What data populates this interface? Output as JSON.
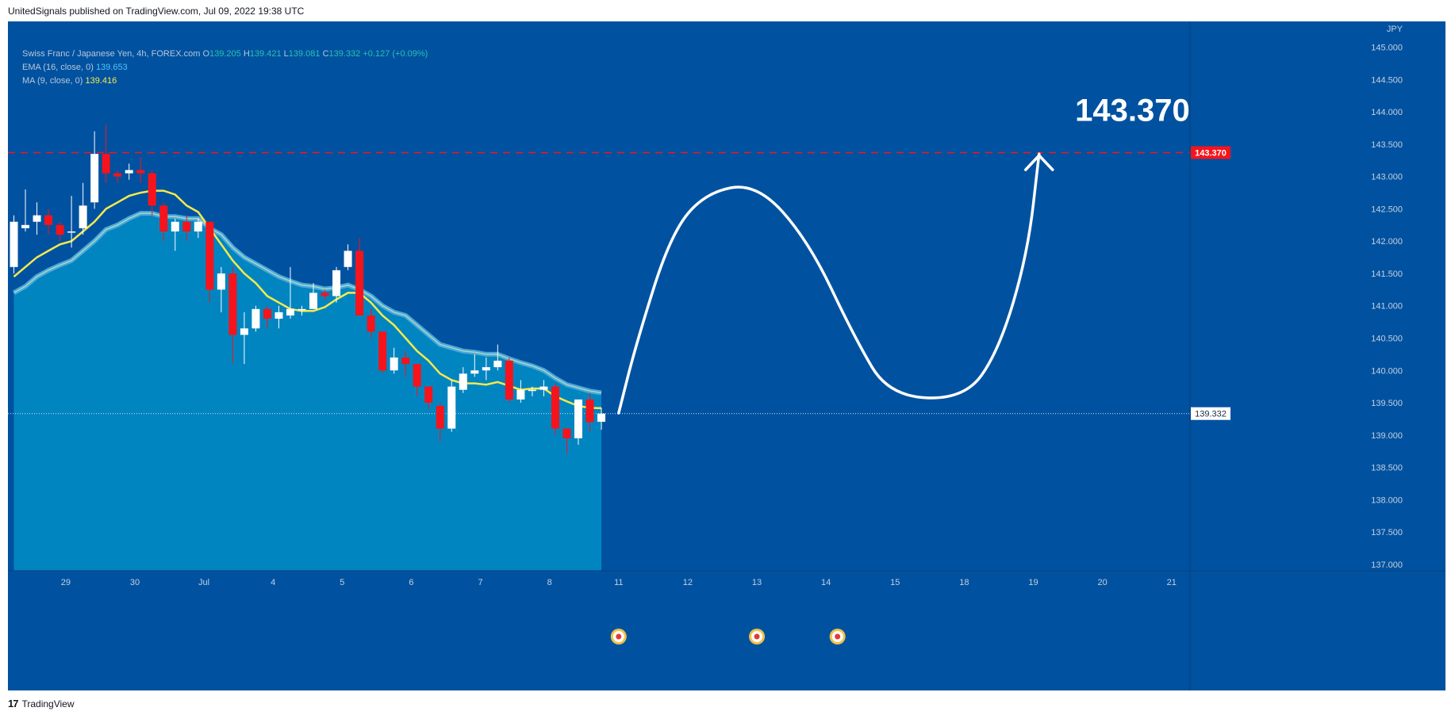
{
  "caption": "UnitedSignals published on TradingView.com, Jul 09, 2022 19:38 UTC",
  "footer_brand": "TradingView",
  "footer_logo": "17",
  "legend": {
    "symbol": "Swiss Franc / Japanese Yen, 4h, FOREX.com",
    "o_label": "O",
    "o": "139.205",
    "h_label": "H",
    "h": "139.421",
    "l_label": "L",
    "l": "139.081",
    "c_label": "C",
    "c": "139.332",
    "change": "+0.127 (+0.09%)",
    "ema_label": "EMA (16, close, 0)",
    "ema_value": "139.653",
    "ma_label": "MA (9, close, 0)",
    "ma_value": "139.416"
  },
  "chart_data": {
    "type": "candlestick",
    "currency": "JPY",
    "ylim": [
      136.9,
      145.4
    ],
    "y_ticks": [
      "137.000",
      "137.500",
      "138.000",
      "138.500",
      "139.000",
      "139.500",
      "140.000",
      "140.500",
      "141.000",
      "141.500",
      "142.000",
      "142.500",
      "143.000",
      "143.500",
      "144.000",
      "144.500",
      "145.000"
    ],
    "x_labels": [
      "29",
      "30",
      "Jul",
      "4",
      "5",
      "6",
      "7",
      "8",
      "11",
      "12",
      "13",
      "14",
      "15",
      "18",
      "19",
      "20",
      "21"
    ],
    "x_label_index": [
      4.5,
      10.5,
      16.5,
      22.5,
      28.5,
      34.5,
      40.5,
      46.5,
      52.5,
      58.5,
      64.5,
      70.5,
      76.5,
      82.5,
      88.5,
      94.5,
      100.5
    ],
    "candles": [
      [
        141.6,
        142.3,
        142.4,
        141.5
      ],
      [
        142.2,
        142.25,
        142.8,
        142.15
      ],
      [
        142.3,
        142.4,
        142.6,
        142.1
      ],
      [
        142.4,
        142.25,
        142.5,
        142.1
      ],
      [
        142.25,
        142.1,
        142.3,
        142.0
      ],
      [
        142.15,
        142.15,
        142.7,
        141.9
      ],
      [
        142.2,
        142.55,
        142.9,
        142.1
      ],
      [
        142.6,
        143.35,
        143.7,
        142.5
      ],
      [
        143.35,
        143.05,
        143.8,
        142.9
      ],
      [
        143.05,
        143.0,
        143.1,
        142.9
      ],
      [
        143.05,
        143.1,
        143.2,
        142.95
      ],
      [
        143.1,
        143.05,
        143.3,
        142.9
      ],
      [
        143.05,
        142.55,
        143.1,
        142.4
      ],
      [
        142.55,
        142.15,
        142.6,
        142.0
      ],
      [
        142.15,
        142.3,
        142.35,
        141.85
      ],
      [
        142.3,
        142.15,
        142.4,
        142.0
      ],
      [
        142.15,
        142.3,
        142.35,
        142.05
      ],
      [
        142.3,
        141.25,
        142.3,
        141.05
      ],
      [
        141.25,
        141.5,
        141.6,
        140.9
      ],
      [
        141.5,
        140.55,
        141.6,
        140.1
      ],
      [
        140.55,
        140.65,
        140.9,
        140.1
      ],
      [
        140.65,
        140.95,
        141.0,
        140.6
      ],
      [
        140.95,
        140.8,
        141.0,
        140.65
      ],
      [
        140.8,
        140.9,
        141.0,
        140.65
      ],
      [
        140.85,
        140.95,
        141.6,
        140.8
      ],
      [
        140.95,
        140.95,
        141.0,
        140.85
      ],
      [
        140.95,
        141.2,
        141.35,
        141.05
      ],
      [
        141.2,
        141.15,
        141.25,
        141.1
      ],
      [
        141.15,
        141.55,
        141.6,
        141.05
      ],
      [
        141.6,
        141.85,
        141.95,
        141.55
      ],
      [
        141.85,
        140.85,
        142.05,
        140.85
      ],
      [
        140.85,
        140.6,
        140.95,
        140.5
      ],
      [
        140.6,
        140.0,
        140.6,
        139.95
      ],
      [
        140.0,
        140.2,
        140.35,
        139.95
      ],
      [
        140.2,
        140.1,
        140.3,
        139.9
      ],
      [
        140.1,
        139.75,
        140.1,
        139.6
      ],
      [
        139.75,
        139.5,
        139.75,
        139.4
      ],
      [
        139.45,
        139.1,
        139.5,
        138.9
      ],
      [
        139.1,
        139.75,
        139.85,
        139.05
      ],
      [
        139.7,
        139.95,
        140.05,
        139.65
      ],
      [
        139.95,
        140.0,
        140.25,
        139.9
      ],
      [
        140.0,
        140.05,
        140.2,
        139.85
      ],
      [
        140.05,
        140.15,
        140.4,
        140.0
      ],
      [
        140.15,
        139.55,
        140.2,
        139.5
      ],
      [
        139.55,
        139.7,
        139.85,
        139.5
      ],
      [
        139.7,
        139.7,
        139.75,
        139.6
      ],
      [
        139.7,
        139.75,
        139.85,
        139.6
      ],
      [
        139.75,
        139.1,
        139.8,
        139.0
      ],
      [
        139.1,
        138.95,
        139.1,
        138.7
      ],
      [
        138.95,
        139.55,
        139.55,
        138.85
      ],
      [
        139.55,
        139.2,
        139.65,
        139.05
      ],
      [
        139.205,
        139.332,
        139.421,
        139.081
      ]
    ],
    "ema": [
      141.2,
      141.3,
      141.45,
      141.55,
      141.63,
      141.7,
      141.85,
      142.0,
      142.18,
      142.25,
      142.35,
      142.43,
      142.43,
      142.38,
      142.38,
      142.35,
      142.35,
      142.2,
      142.1,
      141.9,
      141.75,
      141.65,
      141.55,
      141.45,
      141.38,
      141.32,
      141.3,
      141.26,
      141.28,
      141.32,
      141.25,
      141.15,
      141.0,
      140.9,
      140.85,
      140.7,
      140.55,
      140.4,
      140.35,
      140.3,
      140.28,
      140.25,
      140.25,
      140.18,
      140.12,
      140.07,
      140.0,
      139.88,
      139.78,
      139.73,
      139.68,
      139.653
    ],
    "ma": [
      141.45,
      141.6,
      141.75,
      141.85,
      141.95,
      142.0,
      142.15,
      142.3,
      142.5,
      142.6,
      142.7,
      142.75,
      142.78,
      142.78,
      142.72,
      142.55,
      142.45,
      142.2,
      141.95,
      141.7,
      141.5,
      141.35,
      141.15,
      141.05,
      140.95,
      140.92,
      140.92,
      140.98,
      141.1,
      141.2,
      141.2,
      141.05,
      140.85,
      140.7,
      140.5,
      140.3,
      140.15,
      139.95,
      139.85,
      139.8,
      139.8,
      139.78,
      139.82,
      139.76,
      139.7,
      139.72,
      139.72,
      139.6,
      139.52,
      139.45,
      139.42,
      139.416
    ],
    "current_price": "139.332",
    "target_price": "143.370",
    "target_text": "143.370",
    "projection": [
      [
        52.5,
        139.34
      ],
      [
        54.0,
        140.4
      ],
      [
        57.0,
        142.1
      ],
      [
        60.0,
        142.75
      ],
      [
        64.5,
        142.9
      ],
      [
        69.0,
        142.0
      ],
      [
        73.0,
        140.5
      ],
      [
        76.0,
        139.6
      ],
      [
        82.5,
        139.55
      ],
      [
        85.5,
        140.3
      ],
      [
        88.0,
        141.8
      ],
      [
        89.0,
        143.35
      ]
    ],
    "event_markers_index": [
      52.5,
      64.5,
      71.5
    ]
  },
  "colors": {
    "background": "#0052a0",
    "area_fill": "#0085c0",
    "area_top": "#4aa8da",
    "bull": "#ffffff",
    "bear": "#f5141c",
    "ema_line": "#a8d7c4",
    "ma_line": "#f7e94b",
    "axis_text": "#c4d0e0",
    "target_line": "#f5141c",
    "projection": "#ffffff"
  }
}
